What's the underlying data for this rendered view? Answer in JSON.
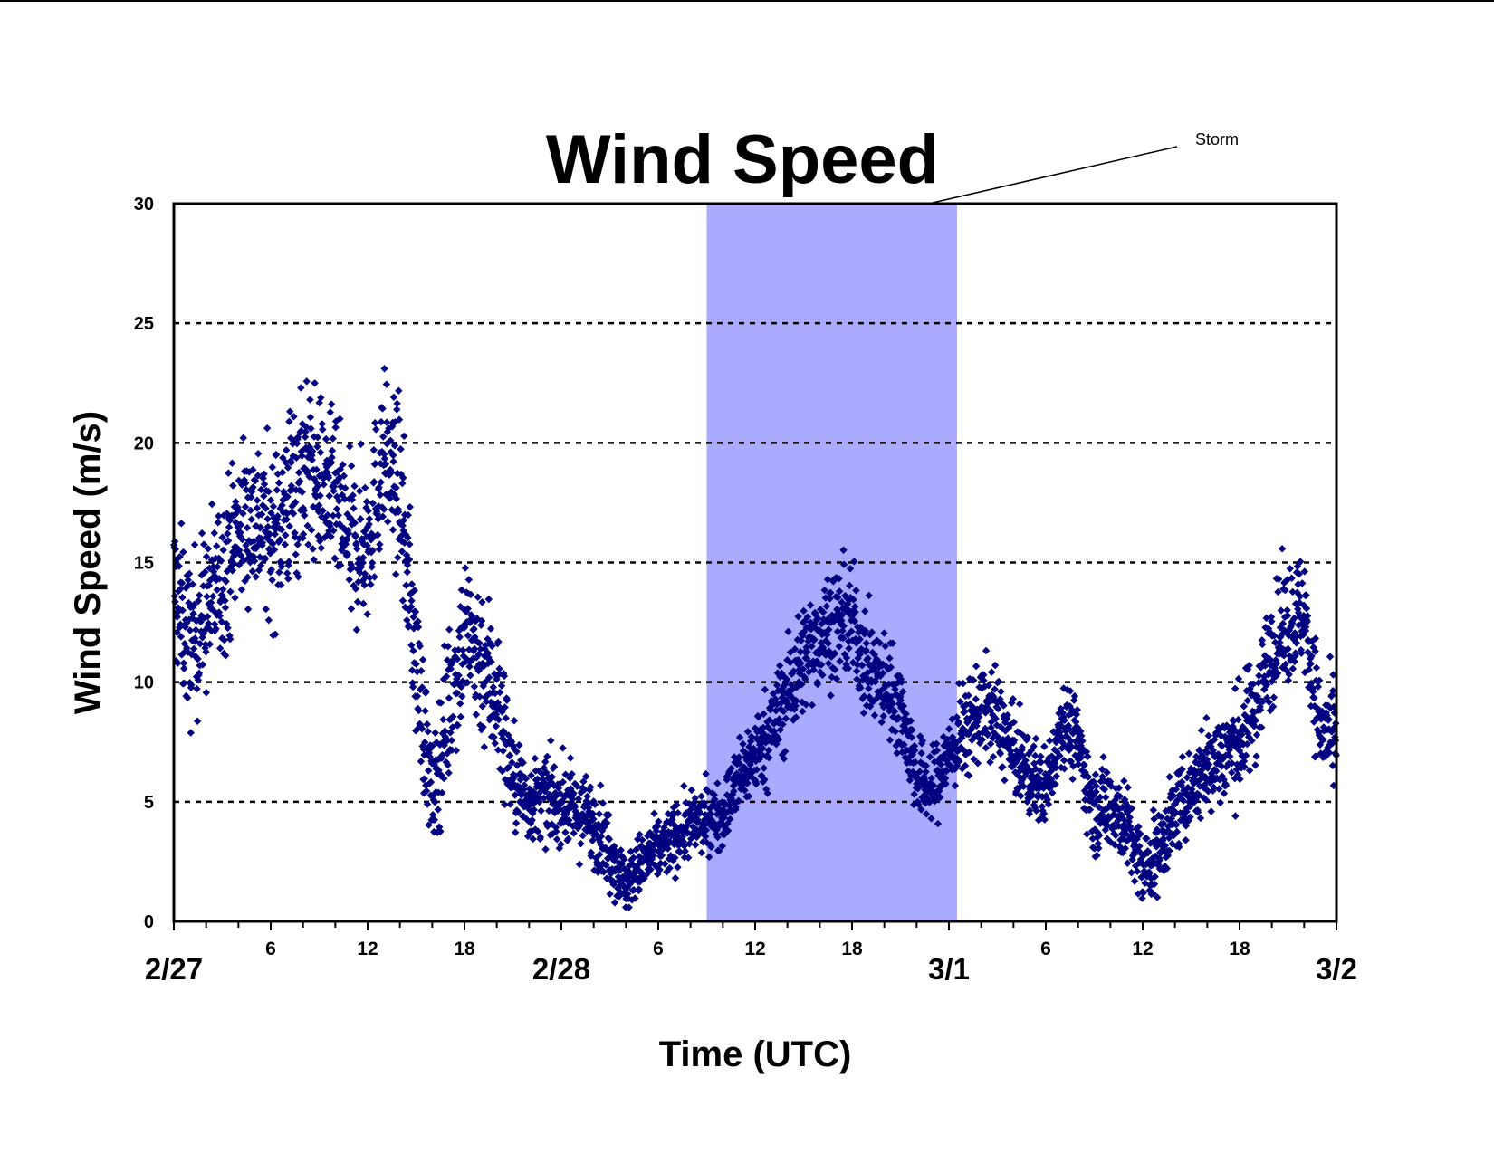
{
  "chart_data": {
    "type": "scatter",
    "title": "Wind Speed",
    "xlabel": "Time (UTC)",
    "ylabel": "Wind Speed (m/s)",
    "ylim": [
      0,
      30
    ],
    "xlim_hours": [
      0,
      72
    ],
    "y_ticks": [
      "0",
      "5",
      "10",
      "15",
      "20",
      "25",
      "30"
    ],
    "hour_tick_labels": [
      {
        "hour": 6,
        "label": "6"
      },
      {
        "hour": 12,
        "label": "12"
      },
      {
        "hour": 18,
        "label": "18"
      },
      {
        "hour": 30,
        "label": "6"
      },
      {
        "hour": 36,
        "label": "12"
      },
      {
        "hour": 42,
        "label": "18"
      },
      {
        "hour": 54,
        "label": "6"
      },
      {
        "hour": 60,
        "label": "12"
      },
      {
        "hour": 66,
        "label": "18"
      }
    ],
    "date_tick_labels": [
      {
        "hour": 0,
        "label": "2/27"
      },
      {
        "hour": 24,
        "label": "2/28"
      },
      {
        "hour": 48,
        "label": "3/1"
      },
      {
        "hour": 72,
        "label": "3/2"
      }
    ],
    "grid": "horizontal dotted at 5 m/s intervals",
    "highlight": {
      "label": "Storm",
      "x_start_hour": 33,
      "x_end_hour": 48.5,
      "color": "#aaaaff"
    },
    "marker": {
      "shape": "diamond",
      "color": "#000080"
    },
    "series": [
      {
        "x_hours": [
          0,
          1,
          2,
          3,
          4,
          5,
          6,
          7,
          8,
          9,
          10,
          11,
          12,
          13,
          14,
          15,
          16,
          17,
          18,
          19,
          20,
          21,
          22,
          23,
          24,
          25,
          26,
          27,
          28,
          29,
          30,
          31,
          32,
          33,
          34,
          35,
          36,
          37,
          38,
          39,
          40,
          41,
          42,
          43,
          44,
          45,
          46,
          47,
          48,
          49,
          50,
          51,
          52,
          53,
          54,
          55,
          56,
          57,
          58,
          59,
          60,
          61,
          62,
          63,
          64,
          65,
          66,
          67,
          68,
          69,
          70,
          71,
          72
        ],
        "y_mean": [
          14,
          11.5,
          13,
          14.5,
          16.5,
          17,
          16,
          17.5,
          19,
          18.5,
          17.5,
          15.5,
          16,
          19.5,
          18,
          11,
          5,
          9,
          12,
          11,
          9.5,
          6,
          5,
          5.2,
          5,
          4.5,
          4.2,
          3,
          1.5,
          2.5,
          3,
          3.5,
          4,
          4.3,
          4.5,
          6,
          7,
          8,
          9.5,
          11,
          12,
          12.5,
          12.5,
          10.5,
          10,
          9,
          6,
          5.5,
          7,
          8,
          9,
          8.5,
          7,
          6,
          5.5,
          8.5,
          7.5,
          4.5,
          5,
          4,
          2,
          3,
          4.5,
          5.5,
          6.5,
          7,
          7.5,
          9,
          11.5,
          12.5,
          13,
          8,
          7.5
        ],
        "y_spread": [
          3,
          3,
          3,
          3,
          3,
          3,
          3,
          3.5,
          3.5,
          3,
          3,
          3,
          3,
          3,
          3,
          3,
          2,
          3,
          3,
          3,
          3,
          2,
          1.5,
          1.5,
          1.5,
          1.5,
          1.5,
          1.5,
          1,
          1.2,
          1.2,
          1.2,
          1.2,
          1.2,
          1.2,
          1.5,
          1.5,
          1.8,
          2,
          2,
          2,
          2,
          2,
          2,
          1.8,
          1.8,
          1.5,
          1.5,
          1.5,
          1.8,
          1.8,
          1.8,
          1.5,
          1.5,
          1.5,
          1.5,
          1.5,
          1.5,
          1.8,
          1.5,
          1.5,
          1.5,
          1.5,
          1.5,
          1.8,
          1.8,
          2,
          2,
          2,
          2.2,
          2.2,
          2,
          2
        ]
      }
    ]
  }
}
